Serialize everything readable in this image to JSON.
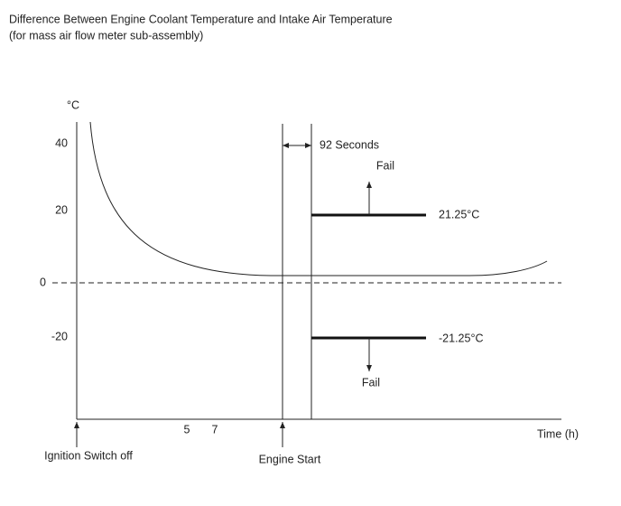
{
  "header": {
    "title": "Difference Between Engine Coolant Temperature and Intake Air Temperature",
    "subtitle": "(for mass air flow meter sub-assembly)"
  },
  "axes": {
    "y_unit": "°C",
    "y_labels": [
      "40",
      "20",
      "0",
      "-20"
    ],
    "x_labels": [
      "5",
      "7"
    ],
    "x_title": "Time (h)"
  },
  "events": [
    "Ignition Switch off",
    "Engine Start"
  ],
  "annotations": {
    "interval": "92 Seconds",
    "upper_threshold": "21.25°C",
    "lower_threshold": "-21.25°C",
    "upper_result": "Fail",
    "lower_result": "Fail"
  }
}
